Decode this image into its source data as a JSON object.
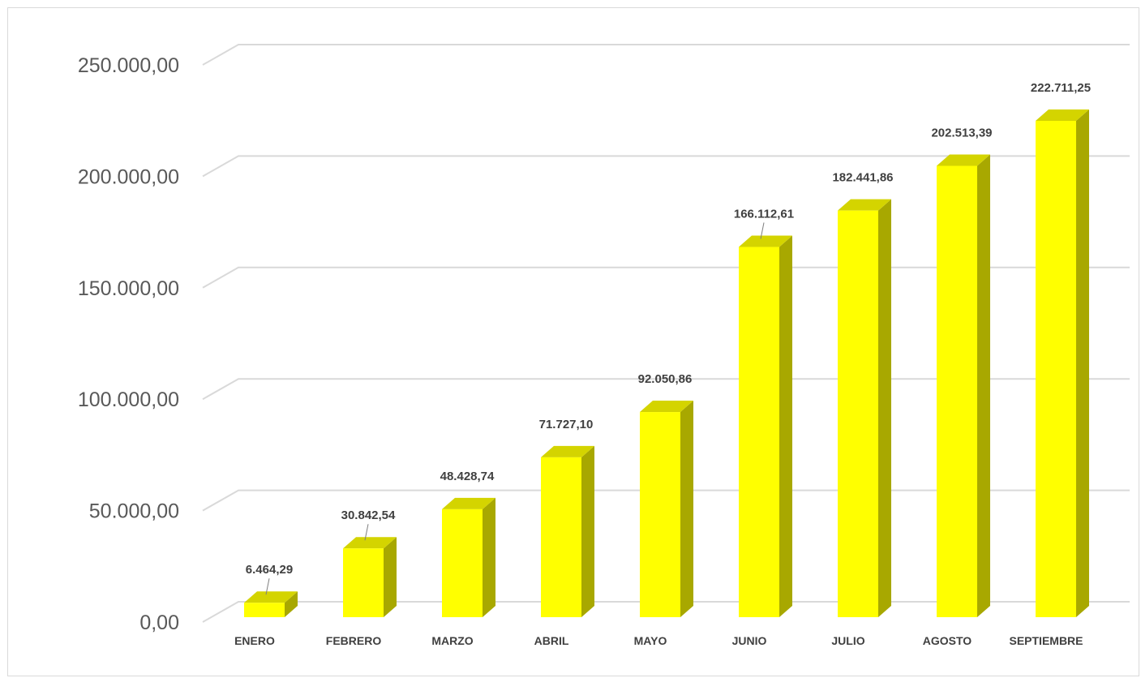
{
  "chart_data": {
    "type": "bar",
    "style": "3d-column",
    "categories": [
      "ENERO",
      "FEBRERO",
      "MARZO",
      "ABRIL",
      "MAYO",
      "JUNIO",
      "JULIO",
      "AGOSTO",
      "SEPTIEMBRE"
    ],
    "values": [
      6464.29,
      30842.54,
      48428.74,
      71727.1,
      92050.86,
      166112.61,
      182441.86,
      202513.39,
      222711.25
    ],
    "value_labels": [
      "6.464,29",
      "30.842,54",
      "48.428,74",
      "71.727,10",
      "92.050,86",
      "166.112,61",
      "182.441,86",
      "202.513,39",
      "222.711,25"
    ],
    "yticks": [
      0,
      50000,
      100000,
      150000,
      200000,
      250000
    ],
    "ytick_labels": [
      "0,00",
      "50.000,00",
      "100.000,00",
      "150.000,00",
      "200.000,00",
      "250.000,00"
    ],
    "ylim": [
      0,
      250000
    ],
    "grid": true,
    "legend": "none",
    "title": "",
    "xlabel": "",
    "ylabel": "",
    "colors": {
      "bar_front": "#ffff00",
      "bar_side": "#a8a800",
      "bar_top": "#d4d400",
      "grid": "#d9d9d9",
      "tick_text": "#595959",
      "label_text": "#404040"
    }
  }
}
